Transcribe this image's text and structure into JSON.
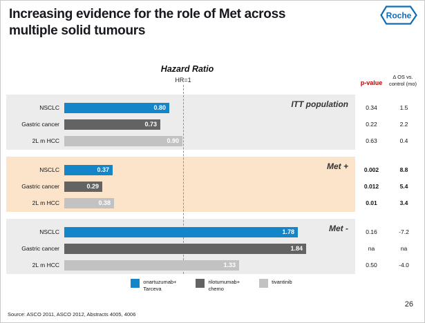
{
  "header": {
    "title_line1": "Increasing evidence for the role of Met across",
    "title_line2": "multiple solid tumours",
    "logo_text": "Roche"
  },
  "chart": {
    "title_label": "Hazard Ratio",
    "reference_label": "HR=1",
    "p_header": "p-value",
    "os_header_line1": "Δ OS vs.",
    "os_header_line2": "control (mo)"
  },
  "chart_data": {
    "type": "bar",
    "orientation": "horizontal",
    "title": "Hazard Ratio",
    "x_reference": {
      "label": "HR=1",
      "value": 1.0
    },
    "series_legend": [
      {
        "name": "onartuzumab+ Tarceva",
        "lines": [
          "onartuzumab+",
          "Tarceva"
        ],
        "color": "#1585ca"
      },
      {
        "name": "rilotumumab+ chemo",
        "lines": [
          "rilotumumab+",
          "chemo"
        ],
        "color": "#636363"
      },
      {
        "name": "tivantinib",
        "lines": [
          "tivantinib"
        ],
        "color": "#c2c2c2"
      }
    ],
    "groups": [
      {
        "label": "ITT population",
        "background": "#ececec",
        "rows": [
          {
            "category": "NSCLC",
            "series": 0,
            "hazard_ratio": 0.8,
            "value_label": "0.80",
            "p_value": "0.34",
            "delta_os": "1.5",
            "bold": false
          },
          {
            "category": "Gastric cancer",
            "series": 1,
            "hazard_ratio": 0.73,
            "value_label": "0.73",
            "p_value": "0.22",
            "delta_os": "2.2",
            "bold": false
          },
          {
            "category": "2L m HCC",
            "series": 2,
            "hazard_ratio": 0.9,
            "value_label": "0.90",
            "p_value": "0.63",
            "delta_os": "0.4",
            "bold": false
          }
        ]
      },
      {
        "label": "Met +",
        "background": "#fbe4ca",
        "rows": [
          {
            "category": "NSCLC",
            "series": 0,
            "hazard_ratio": 0.37,
            "value_label": "0.37",
            "p_value": "0.002",
            "delta_os": "8.8",
            "bold": true
          },
          {
            "category": "Gastric cancer",
            "series": 1,
            "hazard_ratio": 0.29,
            "value_label": "0.29",
            "p_value": "0.012",
            "delta_os": "5.4",
            "bold": true
          },
          {
            "category": "2L m HCC",
            "series": 2,
            "hazard_ratio": 0.38,
            "value_label": "0.38",
            "p_value": "0.01",
            "delta_os": "3.4",
            "bold": true
          }
        ]
      },
      {
        "label": "Met -",
        "background": "#ececec",
        "rows": [
          {
            "category": "NSCLC",
            "series": 0,
            "hazard_ratio": 1.78,
            "value_label": "1.78",
            "p_value": "0.16",
            "delta_os": "-7.2",
            "bold": false
          },
          {
            "category": "Gastric cancer",
            "series": 1,
            "hazard_ratio": 1.84,
            "value_label": "1.84",
            "p_value": "na",
            "delta_os": "na",
            "bold": false
          },
          {
            "category": "2L m HCC",
            "series": 2,
            "hazard_ratio": 1.33,
            "value_label": "1.33",
            "p_value": "0.50",
            "delta_os": "-4.0",
            "bold": false
          }
        ]
      }
    ]
  },
  "footer": {
    "source": "Source: ASCO 2011, ASCO 2012, Abstracts 4005, 4006",
    "page": "26"
  }
}
